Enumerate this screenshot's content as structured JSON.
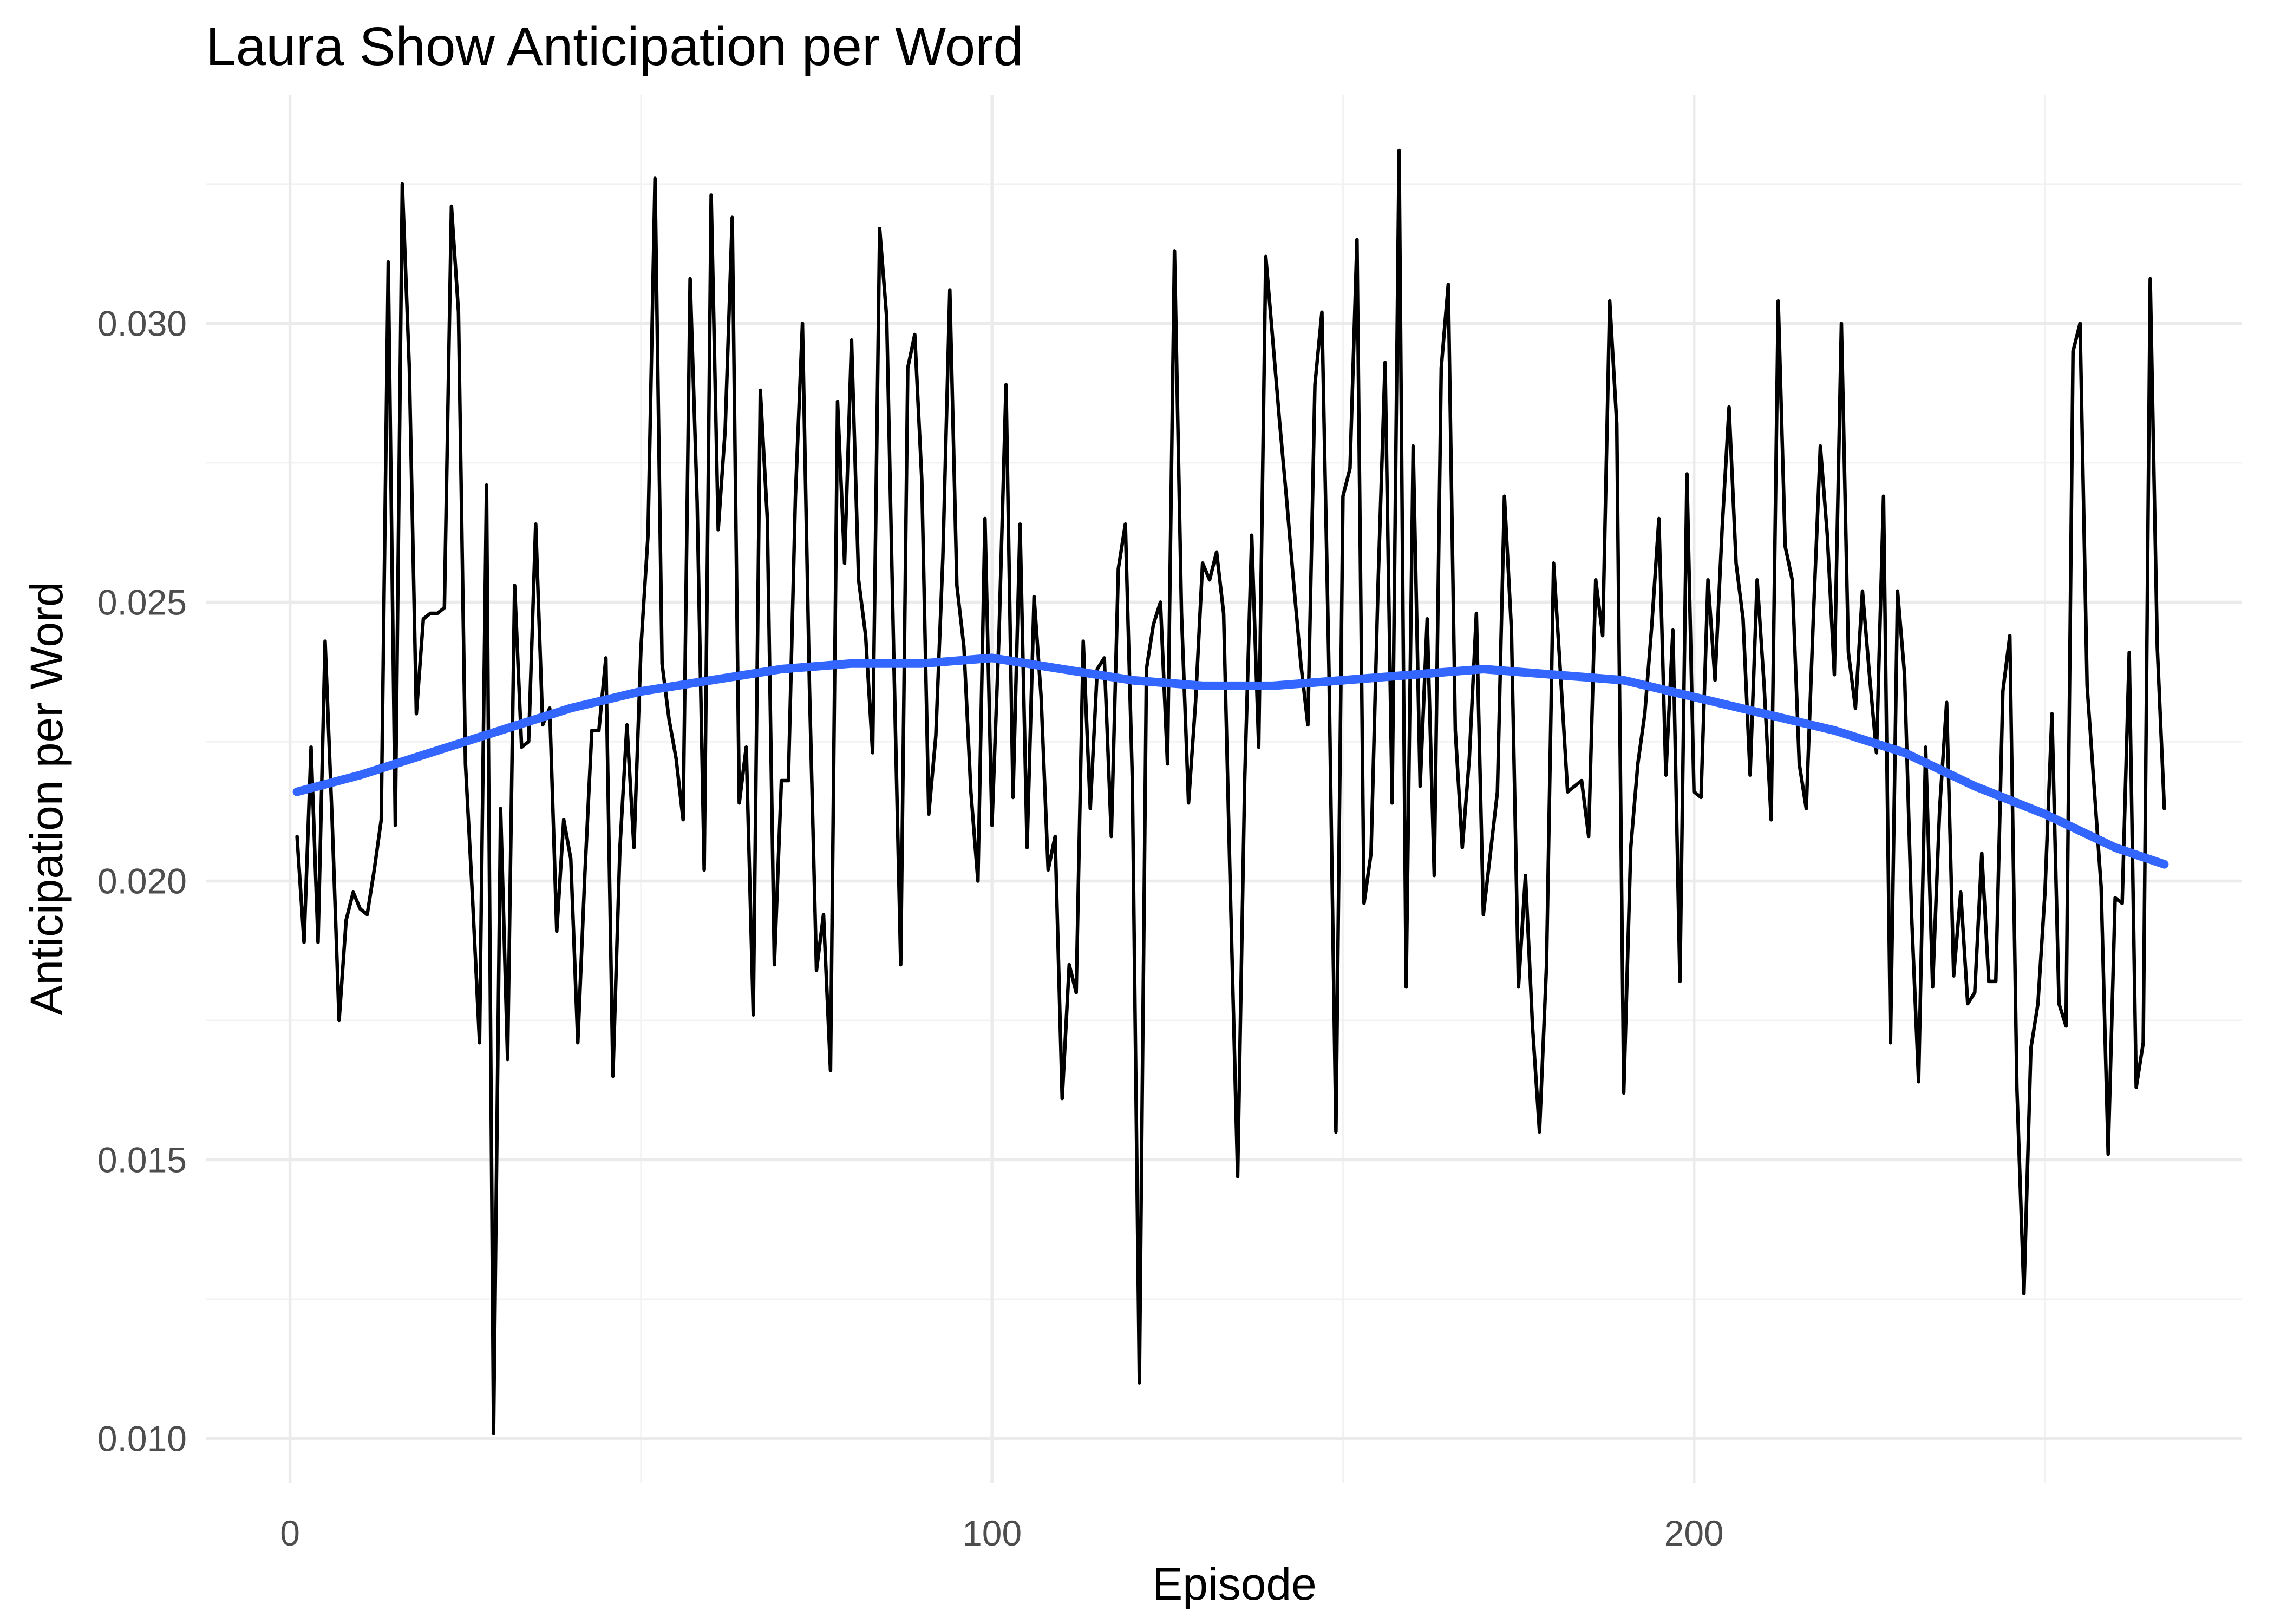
{
  "chart_data": {
    "type": "line",
    "title": "Laura Show Anticipation per Word",
    "xlabel": "Episode",
    "ylabel": "Anticipation per Word",
    "xlim": [
      -12,
      278
    ],
    "ylim": [
      0.0092,
      0.0341
    ],
    "x_ticks": [
      0,
      100,
      200
    ],
    "x_tick_labels": [
      "0",
      "100",
      "200"
    ],
    "x_minor_ticks": [
      50,
      150,
      250
    ],
    "y_ticks": [
      0.01,
      0.015,
      0.02,
      0.025,
      0.03
    ],
    "y_tick_labels": [
      "0.010",
      "0.015",
      "0.020",
      "0.025",
      "0.030"
    ],
    "y_minor_ticks": [
      0.0125,
      0.0175,
      0.0225,
      0.0275,
      0.0325
    ],
    "grid": true,
    "legend": "none",
    "colors": {
      "series": "#000000",
      "smooth": "#3366ff",
      "grid": "#ebebeb"
    },
    "series": [
      {
        "values": [
          [
            1,
            0.0208
          ],
          [
            2,
            0.0189
          ],
          [
            3,
            0.0224
          ],
          [
            4,
            0.0189
          ],
          [
            5,
            0.0243
          ],
          [
            6,
            0.0211
          ],
          [
            7,
            0.0175
          ],
          [
            8,
            0.0193
          ],
          [
            9,
            0.0198
          ],
          [
            10,
            0.0195
          ],
          [
            11,
            0.0194
          ],
          [
            12,
            0.0202
          ],
          [
            13,
            0.0211
          ],
          [
            14,
            0.0311
          ],
          [
            15,
            0.021
          ],
          [
            16,
            0.0325
          ],
          [
            17,
            0.0292
          ],
          [
            18,
            0.023
          ],
          [
            19,
            0.0247
          ],
          [
            20,
            0.0248
          ],
          [
            21,
            0.0248
          ],
          [
            22,
            0.0249
          ],
          [
            23,
            0.0321
          ],
          [
            24,
            0.0302
          ],
          [
            25,
            0.0221
          ],
          [
            26,
            0.0197
          ],
          [
            27,
            0.0171
          ],
          [
            28,
            0.0271
          ],
          [
            29,
            0.0101
          ],
          [
            30,
            0.0213
          ],
          [
            31,
            0.0168
          ],
          [
            32,
            0.0253
          ],
          [
            33,
            0.0224
          ],
          [
            34,
            0.0225
          ],
          [
            35,
            0.0264
          ],
          [
            36,
            0.0228
          ],
          [
            37,
            0.0231
          ],
          [
            38,
            0.0191
          ],
          [
            39,
            0.0211
          ],
          [
            40,
            0.0204
          ],
          [
            41,
            0.0171
          ],
          [
            42,
            0.0201
          ],
          [
            43,
            0.0227
          ],
          [
            44,
            0.0227
          ],
          [
            45,
            0.024
          ],
          [
            46,
            0.0165
          ],
          [
            47,
            0.0206
          ],
          [
            48,
            0.0228
          ],
          [
            49,
            0.0206
          ],
          [
            50,
            0.0242
          ],
          [
            51,
            0.0262
          ],
          [
            52,
            0.0326
          ],
          [
            53,
            0.0239
          ],
          [
            54,
            0.0229
          ],
          [
            55,
            0.0222
          ],
          [
            56,
            0.0211
          ],
          [
            57,
            0.0308
          ],
          [
            58,
            0.0268
          ],
          [
            59,
            0.0202
          ],
          [
            60,
            0.0323
          ],
          [
            61,
            0.0263
          ],
          [
            62,
            0.0281
          ],
          [
            63,
            0.0319
          ],
          [
            64,
            0.0214
          ],
          [
            65,
            0.0224
          ],
          [
            66,
            0.0176
          ],
          [
            67,
            0.0288
          ],
          [
            68,
            0.0265
          ],
          [
            69,
            0.0185
          ],
          [
            70,
            0.0218
          ],
          [
            71,
            0.0218
          ],
          [
            72,
            0.0269
          ],
          [
            73,
            0.03
          ],
          [
            74,
            0.0235
          ],
          [
            75,
            0.0184
          ],
          [
            76,
            0.0194
          ],
          [
            77,
            0.0166
          ],
          [
            78,
            0.0286
          ],
          [
            79,
            0.0257
          ],
          [
            80,
            0.0297
          ],
          [
            81,
            0.0254
          ],
          [
            82,
            0.0244
          ],
          [
            83,
            0.0223
          ],
          [
            84,
            0.0317
          ],
          [
            85,
            0.0301
          ],
          [
            86,
            0.0241
          ],
          [
            87,
            0.0185
          ],
          [
            88,
            0.0292
          ],
          [
            89,
            0.0298
          ],
          [
            90,
            0.0272
          ],
          [
            91,
            0.0212
          ],
          [
            92,
            0.0226
          ],
          [
            93,
            0.0258
          ],
          [
            94,
            0.0306
          ],
          [
            95,
            0.0253
          ],
          [
            96,
            0.0242
          ],
          [
            97,
            0.0216
          ],
          [
            98,
            0.02
          ],
          [
            99,
            0.0265
          ],
          [
            100,
            0.021
          ],
          [
            101,
            0.0244
          ],
          [
            102,
            0.0289
          ],
          [
            103,
            0.0215
          ],
          [
            104,
            0.0264
          ],
          [
            105,
            0.0206
          ],
          [
            106,
            0.0251
          ],
          [
            107,
            0.0233
          ],
          [
            108,
            0.0202
          ],
          [
            109,
            0.0208
          ],
          [
            110,
            0.0161
          ],
          [
            111,
            0.0185
          ],
          [
            112,
            0.018
          ],
          [
            113,
            0.0243
          ],
          [
            114,
            0.0213
          ],
          [
            115,
            0.0238
          ],
          [
            116,
            0.024
          ],
          [
            117,
            0.0208
          ],
          [
            118,
            0.0256
          ],
          [
            119,
            0.0264
          ],
          [
            120,
            0.0218
          ],
          [
            121,
            0.011
          ],
          [
            122,
            0.0238
          ],
          [
            123,
            0.0246
          ],
          [
            124,
            0.025
          ],
          [
            125,
            0.0221
          ],
          [
            126,
            0.0313
          ],
          [
            127,
            0.0248
          ],
          [
            128,
            0.0214
          ],
          [
            129,
            0.0232
          ],
          [
            130,
            0.0257
          ],
          [
            131,
            0.0254
          ],
          [
            132,
            0.0259
          ],
          [
            133,
            0.0248
          ],
          [
            134,
            0.0196
          ],
          [
            135,
            0.0147
          ],
          [
            136,
            0.0218
          ],
          [
            137,
            0.0262
          ],
          [
            138,
            0.0224
          ],
          [
            139,
            0.0312
          ],
          [
            140,
            0.0297
          ],
          [
            141,
            0.0282
          ],
          [
            142,
            0.0268
          ],
          [
            143,
            0.0253
          ],
          [
            144,
            0.0239
          ],
          [
            145,
            0.0228
          ],
          [
            146,
            0.0289
          ],
          [
            147,
            0.0302
          ],
          [
            148,
            0.0238
          ],
          [
            149,
            0.0155
          ],
          [
            150,
            0.0269
          ],
          [
            151,
            0.0274
          ],
          [
            152,
            0.0315
          ],
          [
            153,
            0.0196
          ],
          [
            154,
            0.0205
          ],
          [
            155,
            0.0253
          ],
          [
            156,
            0.0293
          ],
          [
            157,
            0.0214
          ],
          [
            158,
            0.0331
          ],
          [
            159,
            0.0181
          ],
          [
            160,
            0.0278
          ],
          [
            161,
            0.0217
          ],
          [
            162,
            0.0247
          ],
          [
            163,
            0.0201
          ],
          [
            164,
            0.0292
          ],
          [
            165,
            0.0307
          ],
          [
            166,
            0.0227
          ],
          [
            167,
            0.0206
          ],
          [
            168,
            0.0222
          ],
          [
            169,
            0.0248
          ],
          [
            170,
            0.0194
          ],
          [
            171,
            0.0205
          ],
          [
            172,
            0.0216
          ],
          [
            173,
            0.0269
          ],
          [
            174,
            0.0245
          ],
          [
            175,
            0.0181
          ],
          [
            176,
            0.0201
          ],
          [
            177,
            0.0174
          ],
          [
            178,
            0.0155
          ],
          [
            179,
            0.0185
          ],
          [
            180,
            0.0257
          ],
          [
            181,
            0.0237
          ],
          [
            182,
            0.0216
          ],
          [
            183,
            0.0217
          ],
          [
            184,
            0.0218
          ],
          [
            185,
            0.0208
          ],
          [
            186,
            0.0254
          ],
          [
            187,
            0.0244
          ],
          [
            188,
            0.0304
          ],
          [
            189,
            0.0282
          ],
          [
            190,
            0.0162
          ],
          [
            191,
            0.0206
          ],
          [
            192,
            0.0221
          ],
          [
            193,
            0.023
          ],
          [
            194,
            0.0246
          ],
          [
            195,
            0.0265
          ],
          [
            196,
            0.0219
          ],
          [
            197,
            0.0245
          ],
          [
            198,
            0.0182
          ],
          [
            199,
            0.0273
          ],
          [
            200,
            0.0216
          ],
          [
            201,
            0.0215
          ],
          [
            202,
            0.0254
          ],
          [
            203,
            0.0236
          ],
          [
            204,
            0.0263
          ],
          [
            205,
            0.0285
          ],
          [
            206,
            0.0257
          ],
          [
            207,
            0.0247
          ],
          [
            208,
            0.0219
          ],
          [
            209,
            0.0254
          ],
          [
            210,
            0.0235
          ],
          [
            211,
            0.0211
          ],
          [
            212,
            0.0304
          ],
          [
            213,
            0.026
          ],
          [
            214,
            0.0254
          ],
          [
            215,
            0.0221
          ],
          [
            216,
            0.0213
          ],
          [
            217,
            0.0247
          ],
          [
            218,
            0.0278
          ],
          [
            219,
            0.0262
          ],
          [
            220,
            0.0237
          ],
          [
            221,
            0.03
          ],
          [
            222,
            0.0241
          ],
          [
            223,
            0.0231
          ],
          [
            224,
            0.0252
          ],
          [
            225,
            0.0237
          ],
          [
            226,
            0.0223
          ],
          [
            227,
            0.0269
          ],
          [
            228,
            0.0171
          ],
          [
            229,
            0.0252
          ],
          [
            230,
            0.0237
          ],
          [
            231,
            0.0194
          ],
          [
            232,
            0.0164
          ],
          [
            233,
            0.0224
          ],
          [
            234,
            0.0181
          ],
          [
            235,
            0.0213
          ],
          [
            236,
            0.0232
          ],
          [
            237,
            0.0183
          ],
          [
            238,
            0.0198
          ],
          [
            239,
            0.0178
          ],
          [
            240,
            0.018
          ],
          [
            241,
            0.0205
          ],
          [
            242,
            0.0182
          ],
          [
            243,
            0.0182
          ],
          [
            244,
            0.0234
          ],
          [
            245,
            0.0244
          ],
          [
            246,
            0.0163
          ],
          [
            247,
            0.0126
          ],
          [
            248,
            0.017
          ],
          [
            249,
            0.0178
          ],
          [
            250,
            0.0198
          ],
          [
            251,
            0.023
          ],
          [
            252,
            0.0178
          ],
          [
            253,
            0.0174
          ],
          [
            254,
            0.0295
          ],
          [
            255,
            0.03
          ],
          [
            256,
            0.0235
          ],
          [
            257,
            0.0217
          ],
          [
            258,
            0.0199
          ],
          [
            259,
            0.0151
          ],
          [
            260,
            0.0197
          ],
          [
            261,
            0.0196
          ],
          [
            262,
            0.0241
          ],
          [
            263,
            0.0163
          ],
          [
            264,
            0.0171
          ],
          [
            265,
            0.0308
          ],
          [
            266,
            0.0242
          ],
          [
            267,
            0.0213
          ]
        ]
      },
      {
        "type": "smooth",
        "values": [
          [
            1,
            0.0216
          ],
          [
            10,
            0.0219
          ],
          [
            20,
            0.0223
          ],
          [
            30,
            0.0227
          ],
          [
            40,
            0.0231
          ],
          [
            50,
            0.0234
          ],
          [
            60,
            0.0236
          ],
          [
            70,
            0.0238
          ],
          [
            80,
            0.0239
          ],
          [
            90,
            0.0239
          ],
          [
            100,
            0.024
          ],
          [
            110,
            0.0238
          ],
          [
            120,
            0.0236
          ],
          [
            130,
            0.0235
          ],
          [
            140,
            0.0235
          ],
          [
            150,
            0.0236
          ],
          [
            160,
            0.0237
          ],
          [
            170,
            0.0238
          ],
          [
            180,
            0.0237
          ],
          [
            190,
            0.0236
          ],
          [
            200,
            0.0233
          ],
          [
            210,
            0.023
          ],
          [
            220,
            0.0227
          ],
          [
            230,
            0.0223
          ],
          [
            240,
            0.0217
          ],
          [
            250,
            0.0212
          ],
          [
            260,
            0.0206
          ],
          [
            267,
            0.0203
          ]
        ]
      }
    ]
  }
}
